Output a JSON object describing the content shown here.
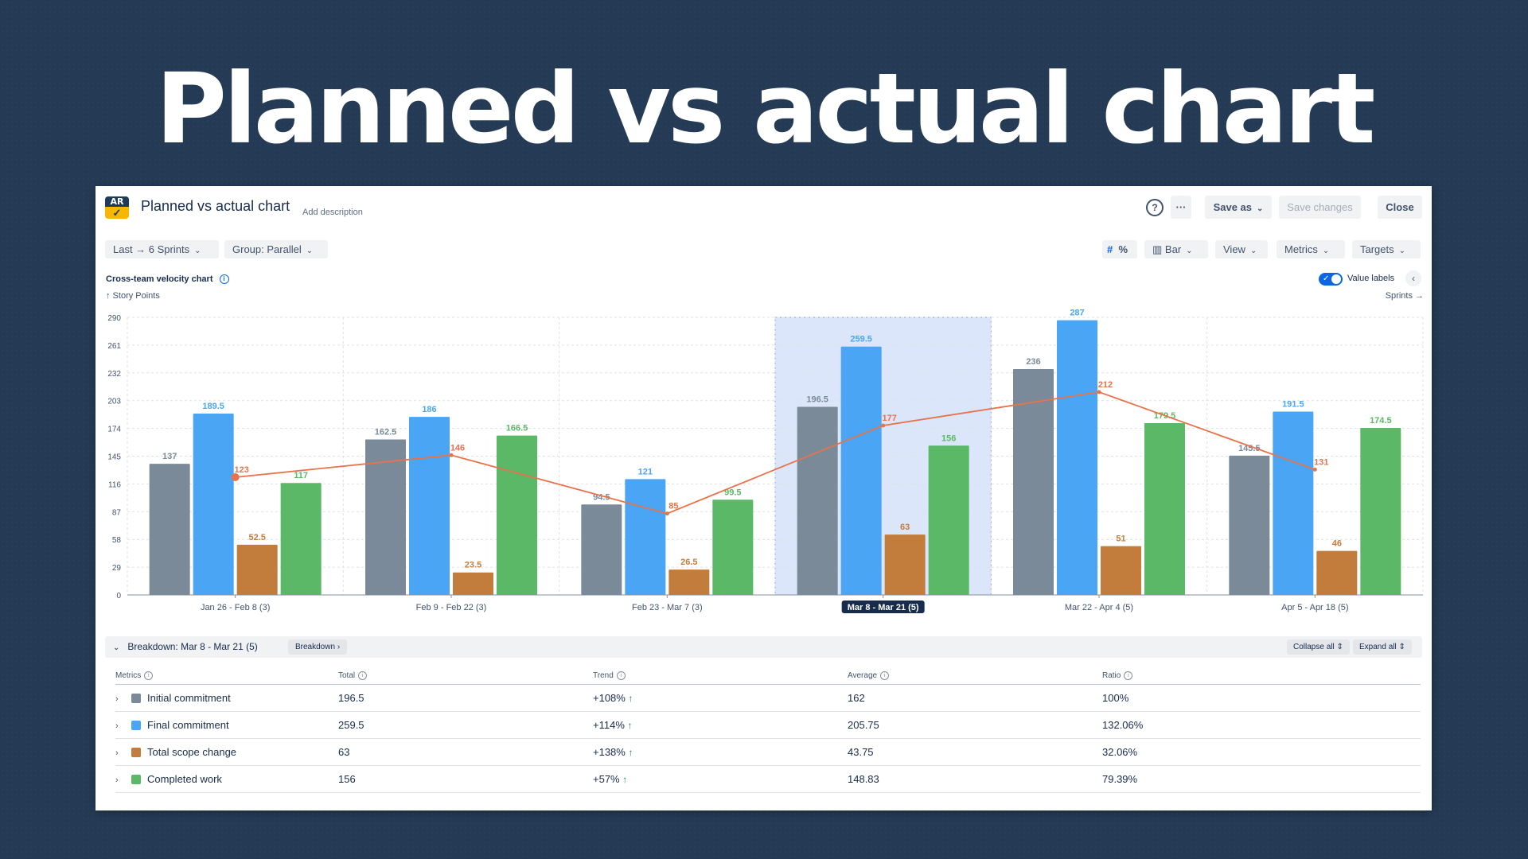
{
  "hero_title": "Planned vs actual chart",
  "header": {
    "logo_text": "AR",
    "title": "Planned vs actual chart",
    "add_description": "Add description",
    "help_label": "?",
    "more_label": "···",
    "save_as_label": "Save as",
    "save_changes_label": "Save changes",
    "close_label": "Close"
  },
  "toolbar": {
    "range_label": "Last → 6 Sprints",
    "group_label": "Group: Parallel",
    "hash_label": "#",
    "percent_label": "%",
    "bar_label": "Bar",
    "view_label": "View",
    "metrics_label": "Metrics",
    "targets_label": "Targets"
  },
  "chart_header": {
    "title": "Cross-team velocity chart",
    "y_unit": "↑ Story Points",
    "x_unit": "Sprints →",
    "value_labels_label": "Value labels",
    "value_labels_on": true
  },
  "chart_data": {
    "type": "bar",
    "title": "Cross-team velocity chart",
    "ylabel": "Story Points",
    "xlabel": "Sprints",
    "ylim": [
      0,
      290
    ],
    "yticks": [
      0,
      29,
      58,
      87,
      116,
      145,
      174,
      203,
      232,
      261,
      290
    ],
    "grid": true,
    "categories": [
      "Jan 26 - Feb 8 (3)",
      "Feb 9 - Feb 22 (3)",
      "Feb 23 - Mar 7 (3)",
      "Mar 8 - Mar 21 (5)",
      "Mar 22 - Apr 4 (5)",
      "Apr 5 - Apr 18 (5)"
    ],
    "highlighted_category": 3,
    "series": [
      {
        "name": "Initial commitment",
        "color": "#7b8a99",
        "values": [
          137,
          162.5,
          94.5,
          196.5,
          236,
          145.5
        ]
      },
      {
        "name": "Final commitment",
        "color": "#4ba5f5",
        "values": [
          189.5,
          186,
          121,
          259.5,
          287,
          191.5
        ]
      },
      {
        "name": "Total scope change",
        "color": "#c27d3c",
        "values": [
          52.5,
          23.5,
          26.5,
          63,
          51,
          46
        ]
      },
      {
        "name": "Completed work",
        "color": "#5bb866",
        "values": [
          117,
          166.5,
          99.5,
          156,
          179.5,
          174.5
        ]
      }
    ],
    "line": {
      "color": "#e8734a",
      "values": [
        123,
        146,
        85,
        177,
        212,
        131
      ]
    }
  },
  "breakdown": {
    "title": "Breakdown: Mar 8 - Mar 21 (5)",
    "chip_label": "Breakdown",
    "collapse_all": "Collapse all",
    "expand_all": "Expand all",
    "columns": [
      "Metrics",
      "Total",
      "Trend",
      "Average",
      "Ratio"
    ],
    "rows": [
      {
        "metric": "Initial commitment",
        "color": "#7b8a99",
        "total": "196.5",
        "trend": "+108%",
        "average": "162",
        "ratio": "100%"
      },
      {
        "metric": "Final commitment",
        "color": "#4ba5f5",
        "total": "259.5",
        "trend": "+114%",
        "average": "205.75",
        "ratio": "132.06%"
      },
      {
        "metric": "Total scope change",
        "color": "#c27d3c",
        "total": "63",
        "trend": "+138%",
        "average": "43.75",
        "ratio": "32.06%"
      },
      {
        "metric": "Completed work",
        "color": "#5bb866",
        "total": "156",
        "trend": "+57%",
        "average": "148.83",
        "ratio": "79.39%"
      }
    ]
  }
}
